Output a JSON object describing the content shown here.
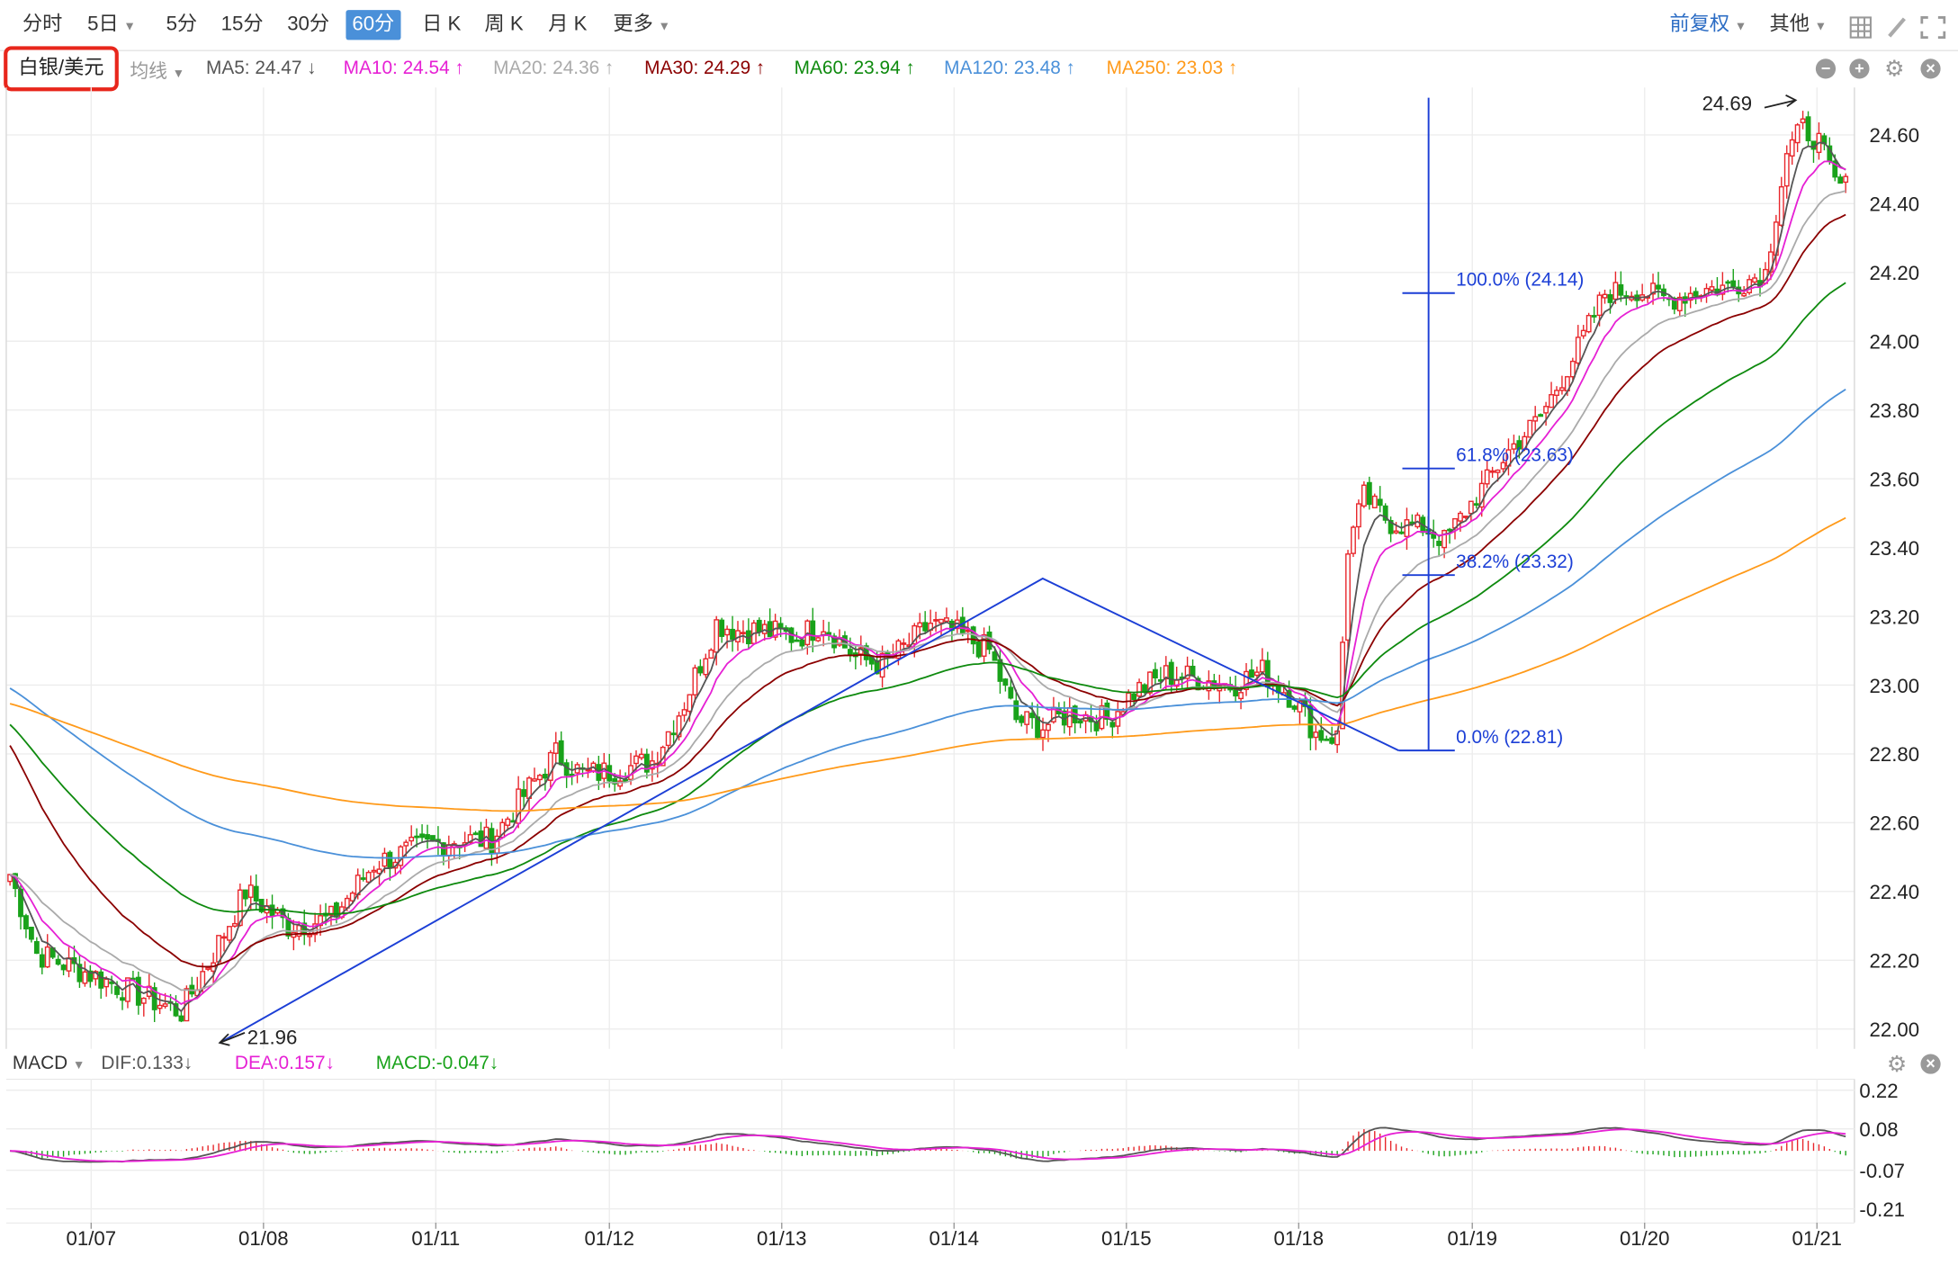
{
  "toolbar": {
    "tabs": [
      "分时",
      "5日",
      "5分",
      "15分",
      "30分",
      "60分",
      "日 K",
      "周 K",
      "月 K",
      "更多"
    ],
    "active_tab": "60分",
    "right_adjust": "前复权",
    "right_other": "其他"
  },
  "symbol": "白银/美元",
  "legend": {
    "type": "均线",
    "ma5": "MA5: 24.47 ↓",
    "ma10": "MA10: 24.54 ↑",
    "ma20": "MA20: 24.36 ↑",
    "ma30": "MA30: 24.29 ↑",
    "ma60": "MA60: 23.94 ↑",
    "ma120": "MA120: 23.48 ↑",
    "ma250": "MA250: 23.03 ↑"
  },
  "macd_legend": {
    "name": "MACD",
    "dif": "DIF:0.133↓",
    "dea": "DEA:0.157↓",
    "macd": "MACD:-0.047↓"
  },
  "colors": {
    "up": "#e8262b",
    "down": "#19a21a",
    "ma5": "#555555",
    "ma10": "#e620d4",
    "ma20": "#aaaaaa",
    "ma30": "#8b0000",
    "ma60": "#0e8a0e",
    "ma120": "#4a90d9",
    "ma250": "#ff9a1a",
    "drawing": "#1c3fd6"
  },
  "chart_data": {
    "type": "candlestick",
    "y_axis_ticks": [
      "24.60",
      "24.40",
      "24.20",
      "24.00",
      "23.80",
      "23.60",
      "23.40",
      "23.20",
      "23.00",
      "22.80",
      "22.60",
      "22.40",
      "22.20",
      "22.00"
    ],
    "ylim": [
      21.99,
      24.73
    ],
    "x_axis_labels": [
      "01/07",
      "01/08",
      "01/11",
      "01/12",
      "01/13",
      "01/14",
      "01/15",
      "01/18",
      "01/19",
      "01/20",
      "01/21"
    ],
    "annotations": {
      "high": "24.69",
      "low": "21.96",
      "fib_100": "100.0% (24.14)",
      "fib_618": "61.8% (23.63)",
      "fib_382": "38.2% (23.32)",
      "fib_0": "0.0% (22.81)"
    },
    "trend_line_points": [
      {
        "date_index": 0,
        "price": 21.96
      },
      {
        "date_index": 1,
        "price": 23.31
      },
      {
        "date_index": 2,
        "price": 22.81
      }
    ],
    "ma_current": {
      "MA5": 24.47,
      "MA10": 24.54,
      "MA20": 24.36,
      "MA30": 24.29,
      "MA60": 23.94,
      "MA120": 23.48,
      "MA250": 23.03
    },
    "macd": {
      "y_axis_ticks": [
        "0.22",
        "0.08",
        "-0.07",
        "-0.21"
      ],
      "ylim": [
        -0.24,
        0.25
      ],
      "DIF": 0.133,
      "DEA": 0.157,
      "MACD": -0.047
    }
  }
}
